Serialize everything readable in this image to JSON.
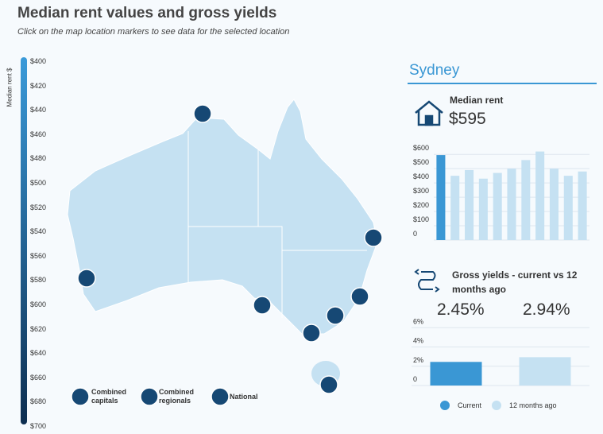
{
  "header": {
    "title": "Median rent values and gross yields",
    "subtitle": "Click on the map location markers to see data for the selected location"
  },
  "scale": {
    "label": "Median rent $",
    "ticks": [
      "$400",
      "$420",
      "$440",
      "$460",
      "$480",
      "$500",
      "$520",
      "$540",
      "$560",
      "$580",
      "$600",
      "$620",
      "$640",
      "$660",
      "$680",
      "$700"
    ]
  },
  "map": {
    "legend": [
      "Combined capitals",
      "Combined regionals",
      "National"
    ]
  },
  "panel": {
    "location": "Sydney",
    "median_rent_label": "Median rent",
    "median_rent": "$595",
    "yields_label": "Gross yields - current vs 12 months ago",
    "current": "2.45%",
    "prior": "2.94%"
  },
  "chart_data": [
    {
      "type": "bar",
      "categories": [
        null,
        null,
        null,
        null,
        null,
        null,
        null,
        null,
        null,
        null,
        null
      ],
      "values": [
        595,
        450,
        490,
        430,
        470,
        500,
        560,
        620,
        500,
        450,
        480
      ],
      "colors": [
        "#3a97d4",
        "#c5e1f2",
        "#c5e1f2",
        "#c5e1f2",
        "#c5e1f2",
        "#c5e1f2",
        "#c5e1f2",
        "#c5e1f2",
        "#c5e1f2",
        "#c5e1f2",
        "#c5e1f2"
      ],
      "ylim": [
        0,
        640
      ],
      "yticks": [
        0,
        {
          "value": 100,
          "label": "$100"
        },
        {
          "value": 200,
          "label": "$200"
        },
        {
          "value": 300,
          "label": "$300"
        },
        {
          "value": 400,
          "label": "$400"
        },
        {
          "value": 500,
          "label": "$500"
        },
        {
          "value": 600,
          "label": "$600"
        }
      ],
      "grid": true
    },
    {
      "type": "bar",
      "categories": [
        "Current",
        "12 months ago"
      ],
      "values": [
        2.45,
        2.94
      ],
      "colors": [
        "#3a97d4",
        "#c5e1f2"
      ],
      "ylim": [
        0,
        6.6
      ],
      "yticks": [
        0,
        {
          "value": 2,
          "label": "2%"
        },
        {
          "value": 4,
          "label": "4%"
        },
        {
          "value": 6,
          "label": "6%"
        }
      ],
      "grid": true,
      "legend": true
    }
  ]
}
